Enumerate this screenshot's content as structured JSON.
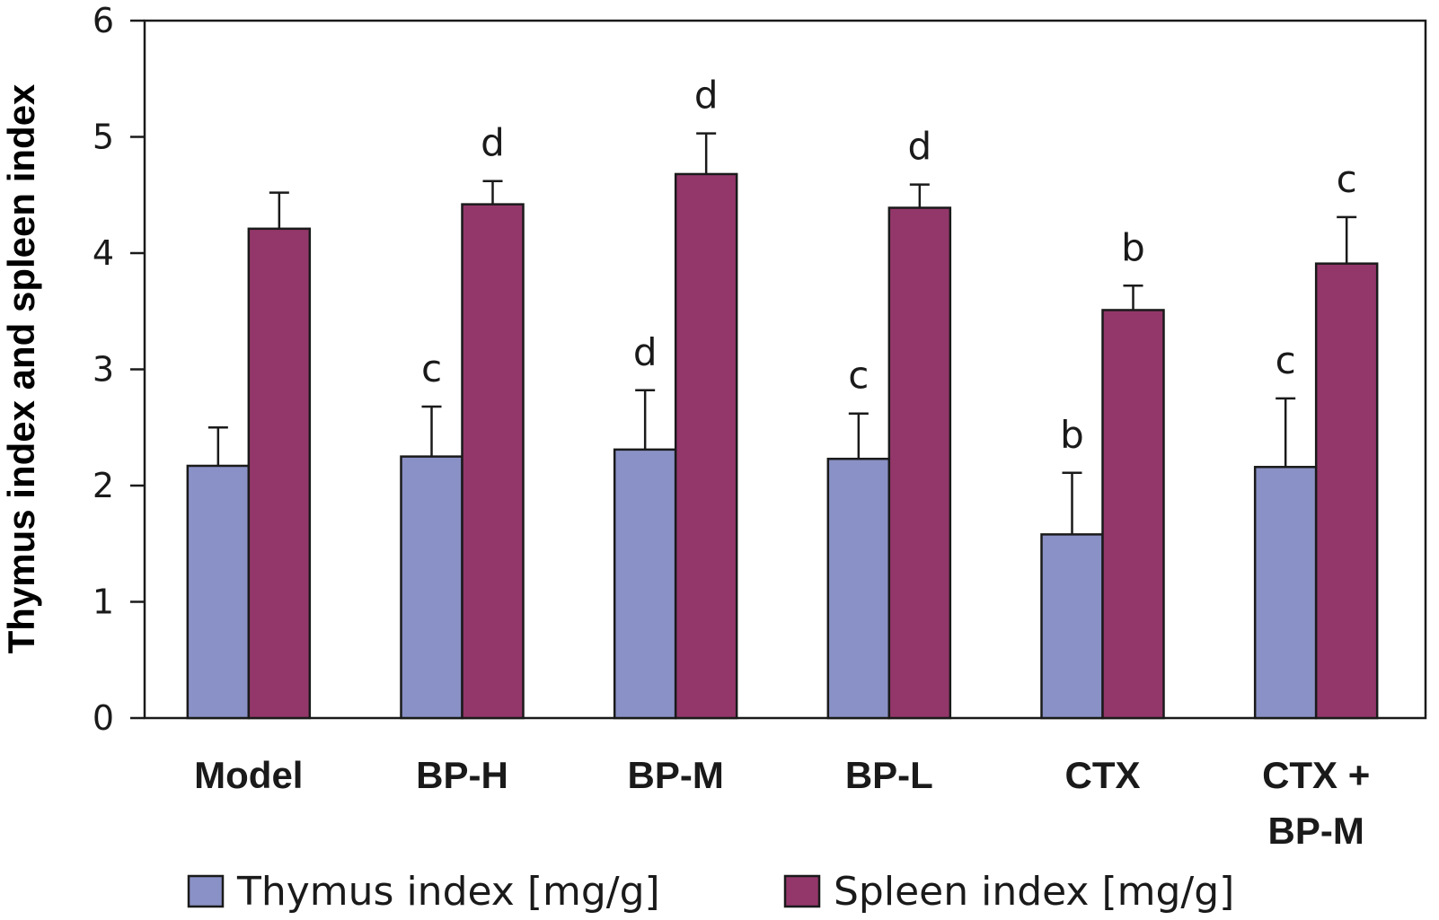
{
  "chart_data": {
    "type": "bar",
    "title": "",
    "xlabel": "",
    "ylabel": "Thymus index and spleen index",
    "ylim": [
      0,
      6
    ],
    "yticks": [
      "0",
      "1",
      "2",
      "3",
      "4",
      "5",
      "6"
    ],
    "grid": false,
    "legend_position": "bottom",
    "categories": [
      [
        "Model"
      ],
      [
        "BP-H"
      ],
      [
        "BP-M"
      ],
      [
        "BP-L"
      ],
      [
        "CTX"
      ],
      [
        "CTX +",
        "BP-M"
      ]
    ],
    "series": [
      {
        "name": "Thymus index [mg/g]",
        "color": "#8a91c6",
        "values": [
          2.17,
          2.25,
          2.31,
          2.23,
          1.58,
          2.16
        ],
        "errors": [
          0.33,
          0.43,
          0.51,
          0.39,
          0.53,
          0.59
        ],
        "labels": [
          "",
          "c",
          "d",
          "c",
          "b",
          "c"
        ]
      },
      {
        "name": "Spleen index [mg/g]",
        "color": "#93376a",
        "values": [
          4.21,
          4.42,
          4.68,
          4.39,
          3.51,
          3.91
        ],
        "errors": [
          0.31,
          0.2,
          0.35,
          0.2,
          0.21,
          0.4
        ],
        "labels": [
          "",
          "d",
          "d",
          "d",
          "b",
          "c"
        ]
      }
    ]
  }
}
